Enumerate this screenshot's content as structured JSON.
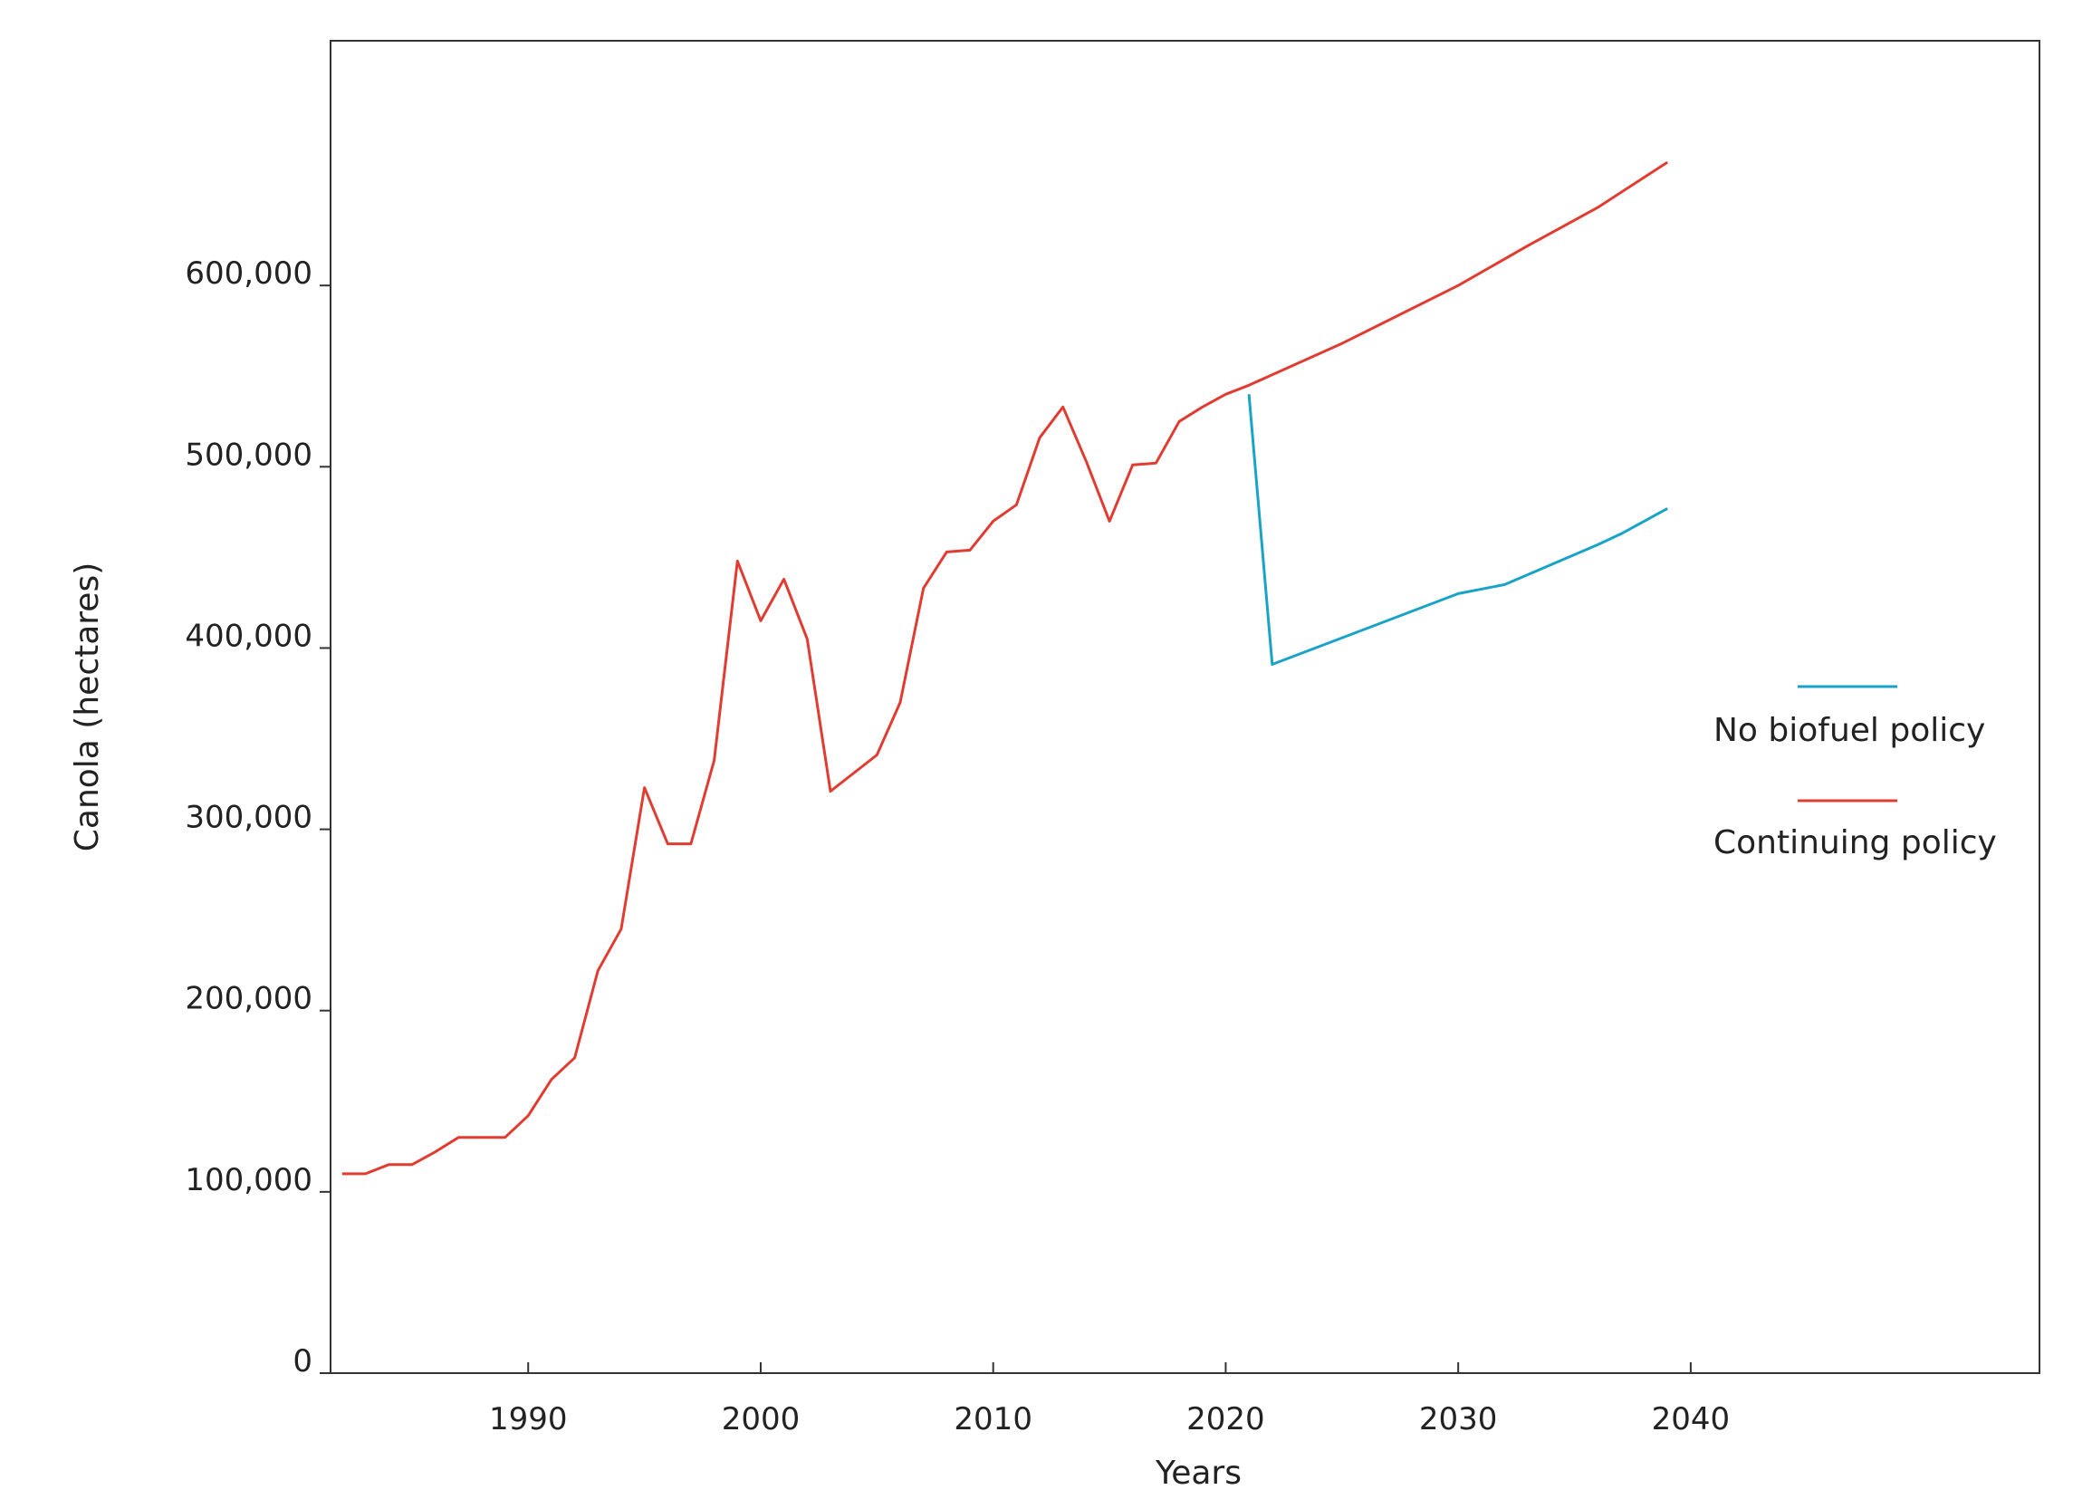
{
  "chart_data": {
    "type": "line",
    "title": "",
    "xlabel": "Years",
    "ylabel": "Canola (hectares)",
    "xlim": [
      1981.5,
      2055
    ],
    "ylim": [
      0,
      735000
    ],
    "x_ticks": [
      1990,
      2000,
      2010,
      2020,
      2030,
      2040
    ],
    "x_tick_labels": [
      "1990",
      "2000",
      "2010",
      "2020",
      "2030",
      "2040"
    ],
    "y_ticks": [
      0,
      100000,
      200000,
      300000,
      400000,
      500000,
      600000
    ],
    "y_tick_labels": [
      "0",
      "100,000",
      "200,000",
      "300,000",
      "400,000",
      "500,000",
      "600,000"
    ],
    "grid": false,
    "legend_position": "right",
    "series": [
      {
        "name": "No biofuel policy",
        "color": "#1aa3c9",
        "x": [
          2021,
          2022,
          2030,
          2032,
          2036,
          2037,
          2039
        ],
        "y": [
          540000,
          391000,
          430000,
          435000,
          457000,
          463000,
          477000
        ]
      },
      {
        "name": "Continuing policy",
        "color": "#e03c31",
        "x": [
          1982,
          1983,
          1984,
          1985,
          1986,
          1987,
          1988,
          1989,
          1990,
          1991,
          1992,
          1993,
          1994,
          1995,
          1996,
          1997,
          1998,
          1999,
          2000,
          2001,
          2002,
          2003,
          2004,
          2005,
          2006,
          2007,
          2008,
          2009,
          2010,
          2011,
          2012,
          2013,
          2014,
          2015,
          2016,
          2017,
          2018,
          2019,
          2020,
          2021,
          2025,
          2030,
          2033,
          2036,
          2039
        ],
        "y": [
          110000,
          110000,
          115000,
          115000,
          122000,
          130000,
          130000,
          130000,
          142000,
          162000,
          174000,
          222000,
          245000,
          323000,
          292000,
          292000,
          338000,
          448000,
          415000,
          438000,
          405000,
          321000,
          331000,
          341000,
          370000,
          433000,
          453000,
          454000,
          470000,
          479000,
          516000,
          533000,
          503000,
          470000,
          501000,
          502000,
          525000,
          533000,
          540000,
          545000,
          568000,
          600000,
          622000,
          643000,
          668000
        ]
      }
    ]
  }
}
